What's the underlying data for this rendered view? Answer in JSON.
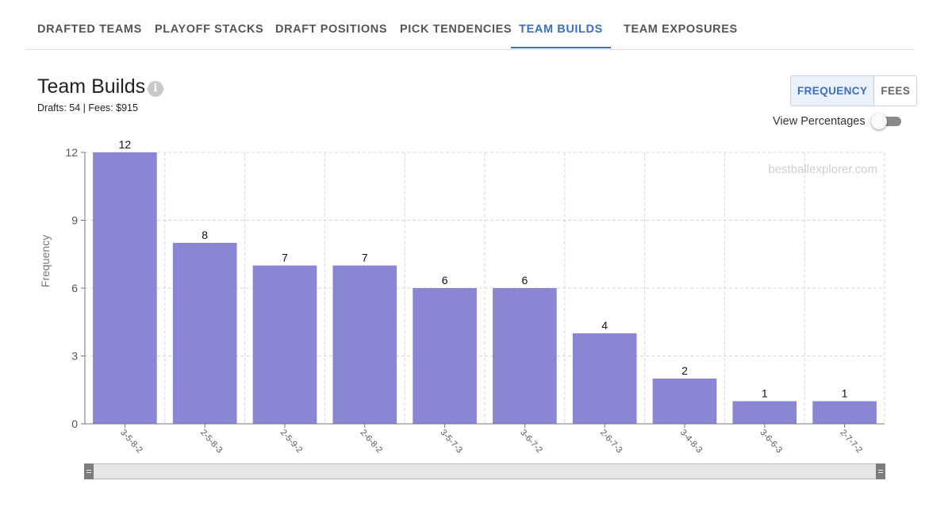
{
  "tabs": [
    {
      "label": "DRAFTED TEAMS",
      "active": false
    },
    {
      "label": "PLAYOFF STACKS",
      "active": false
    },
    {
      "label": "DRAFT POSITIONS",
      "active": false
    },
    {
      "label": "PICK TENDENCIES",
      "active": false
    },
    {
      "label": "TEAM BUILDS",
      "active": true
    },
    {
      "label": "TEAM EXPOSURES",
      "active": false
    }
  ],
  "header": {
    "title": "Team Builds",
    "info_icon": "info-icon",
    "subtitle": "Drafts: 54 | Fees: $915"
  },
  "mode_toggle": {
    "options": [
      "FREQUENCY",
      "FEES"
    ],
    "selected": "FREQUENCY"
  },
  "view_percentages": {
    "label": "View Percentages",
    "enabled": false
  },
  "chart_data": {
    "type": "bar",
    "categories": [
      "3-5-8-2",
      "2-5-8-3",
      "2-5-9-2",
      "2-6-8-2",
      "3-5-7-3",
      "3-6-7-2",
      "2-6-7-3",
      "3-4-8-3",
      "3-6-6-3",
      "2-7-7-2"
    ],
    "values": [
      12,
      8,
      7,
      7,
      6,
      6,
      4,
      2,
      1,
      1
    ],
    "ylabel": "Frequency",
    "xlabel": "",
    "ylim": [
      0,
      12
    ],
    "yticks": [
      0,
      3,
      6,
      9,
      12
    ],
    "grid": true,
    "bar_color": "#8987d3",
    "data_labels": true,
    "watermark": "bestballexplorer.com"
  },
  "colors": {
    "accent": "#3a6fc4",
    "bar": "#8987d3"
  }
}
